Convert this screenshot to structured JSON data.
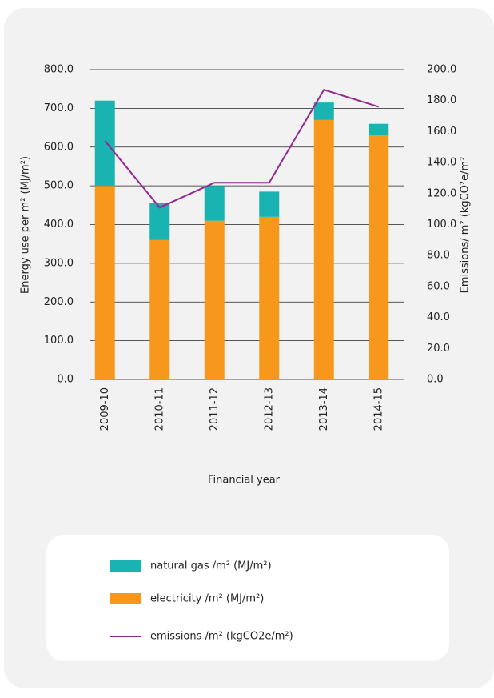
{
  "chart_data": {
    "type": "bar",
    "x_label": "Financial year",
    "y_label": "Energy use per m² (MJ/m²)",
    "y2_label": "Emissions/ m² (kgCO²e/m²",
    "categories": [
      "2009-10",
      "2010-11",
      "2011-12",
      "2012-13",
      "2013-14",
      "2014-15"
    ],
    "series": [
      {
        "name": "natural gas /m² (MJ/m²)",
        "type": "bar",
        "color": "#19b3b1",
        "values": [
          220,
          95,
          90,
          65,
          45,
          30
        ]
      },
      {
        "name": "electricity /m² (MJ/m²)",
        "type": "bar",
        "color": "#f7981d",
        "values": [
          500,
          360,
          410,
          420,
          670,
          630
        ]
      },
      {
        "name": "emissions /m² (kgCO2e/m²)",
        "type": "line",
        "axis": "y2",
        "color": "#93278f",
        "values": [
          154,
          111,
          127,
          127,
          187,
          176
        ]
      }
    ],
    "ylim": [
      0,
      800
    ],
    "yticks": [
      {
        "value": 0,
        "label": "0.0"
      },
      {
        "value": 100,
        "label": "100.0"
      },
      {
        "value": 200,
        "label": "200.0"
      },
      {
        "value": 300,
        "label": "300.0"
      },
      {
        "value": 400,
        "label": "400.0"
      },
      {
        "value": 500,
        "label": "500.0"
      },
      {
        "value": 600,
        "label": "600.0"
      },
      {
        "value": 700,
        "label": "700.0"
      },
      {
        "value": 800,
        "label": "800.0"
      }
    ],
    "y2lim": [
      0,
      200
    ],
    "y2ticks": [
      {
        "value": 0,
        "label": "0.0"
      },
      {
        "value": 20,
        "label": "20.0"
      },
      {
        "value": 40,
        "label": "40.0"
      },
      {
        "value": 60,
        "label": "60.0"
      },
      {
        "value": 80,
        "label": "80.0"
      },
      {
        "value": 100,
        "label": "100.0"
      },
      {
        "value": 120,
        "label": "120.0"
      },
      {
        "value": 140,
        "label": "140.0"
      },
      {
        "value": 160,
        "label": "160.0"
      },
      {
        "value": 180,
        "label": "180.0"
      },
      {
        "value": 200,
        "label": "200.0"
      }
    ],
    "grid": true
  }
}
